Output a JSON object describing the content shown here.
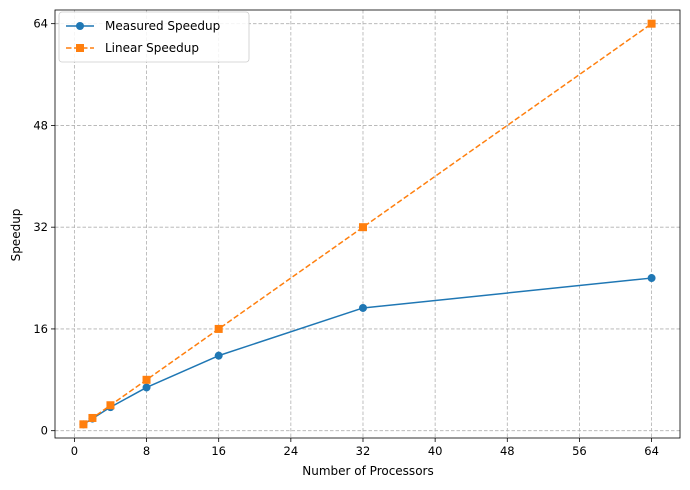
{
  "chart_data": {
    "type": "line",
    "title": "",
    "xlabel": "Number of Processors",
    "ylabel": "Speedup",
    "xlim": [
      -2.15,
      67.15
    ],
    "ylim": [
      -1.15,
      66.15
    ],
    "xticks": [
      0,
      8,
      16,
      24,
      32,
      40,
      48,
      56,
      64
    ],
    "yticks": [
      0,
      16,
      32,
      48,
      64
    ],
    "grid": true,
    "legend_position": "top-left",
    "series": [
      {
        "name": "Measured Speedup",
        "color": "#1f77b4",
        "line_style": "solid",
        "marker": "circle",
        "x": [
          1,
          2,
          4,
          8,
          16,
          32,
          64
        ],
        "y": [
          1,
          1.9,
          3.7,
          6.8,
          11.8,
          19.3,
          24.0
        ]
      },
      {
        "name": "Linear Speedup",
        "color": "#ff7f0e",
        "line_style": "dashed",
        "marker": "square",
        "x": [
          1,
          2,
          4,
          8,
          16,
          32,
          64
        ],
        "y": [
          1,
          2,
          4,
          8,
          16,
          32,
          64
        ]
      }
    ]
  }
}
